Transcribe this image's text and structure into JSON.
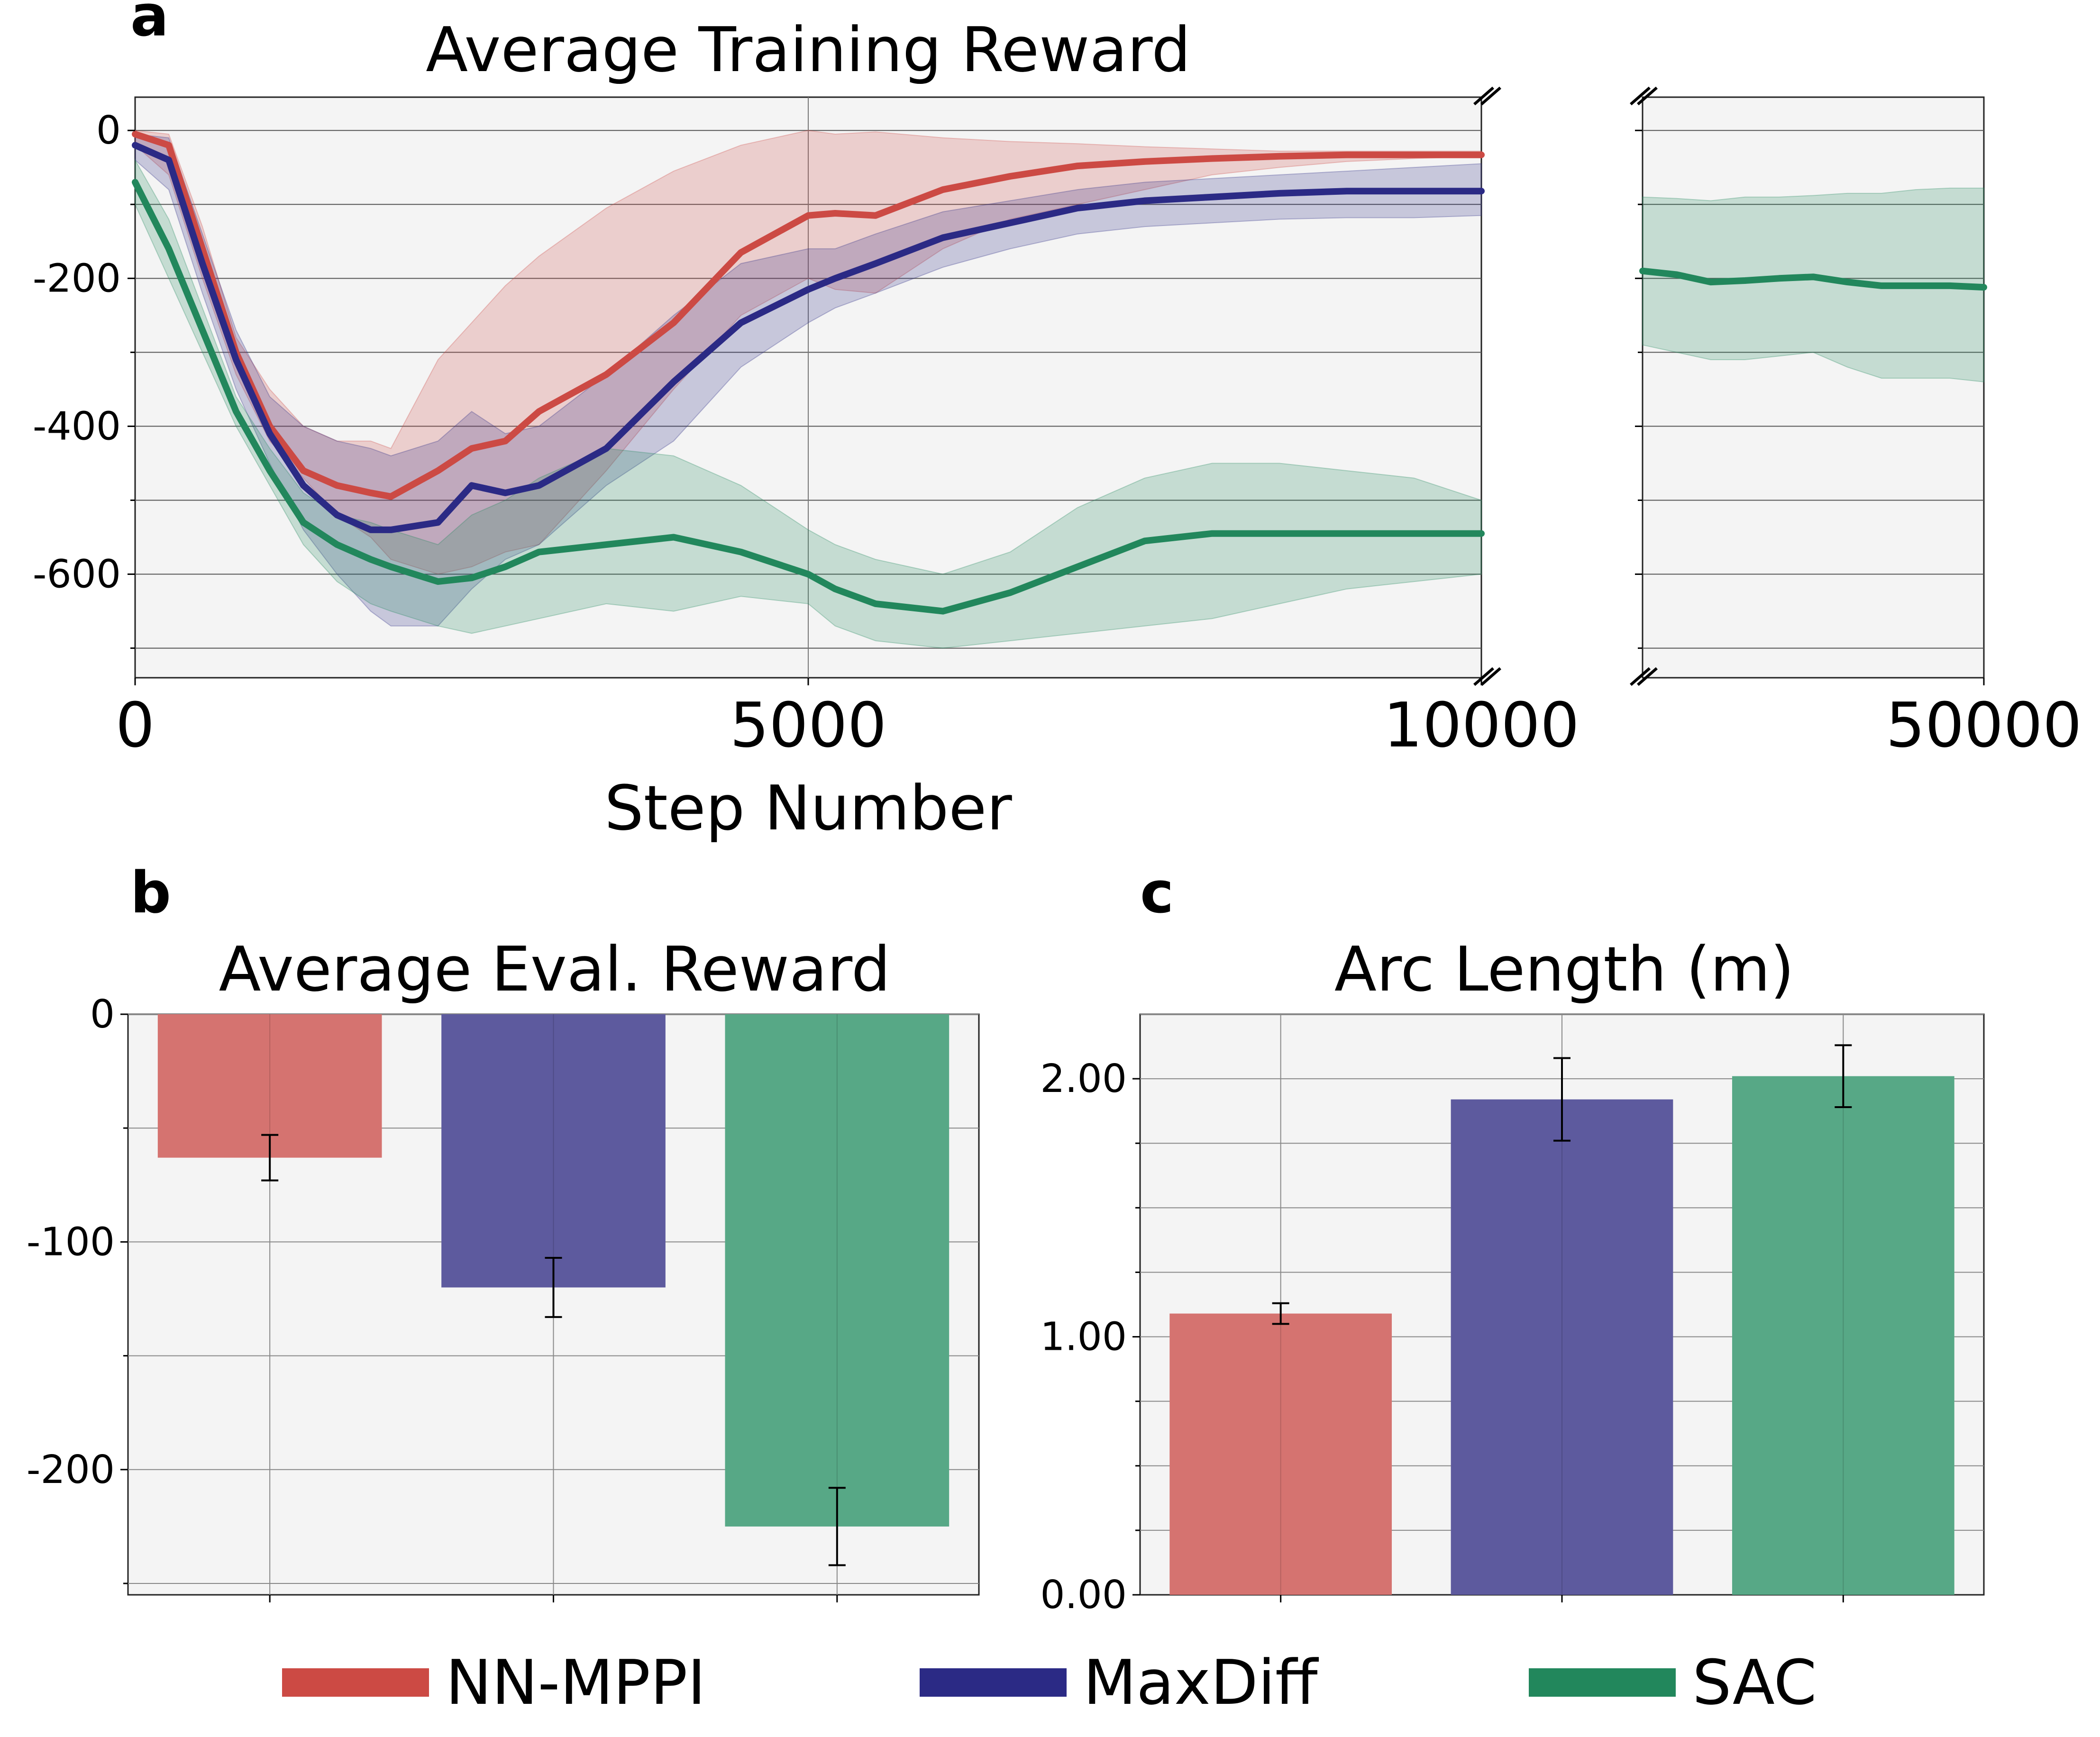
{
  "panel_labels": {
    "a": "a",
    "b": "b",
    "c": "c"
  },
  "colors": {
    "nn_mppi": "#cc4a44",
    "maxdiff": "#2b2a85",
    "sac": "#22875c",
    "nn_mppi_bar": "#d57370",
    "maxdiff_bar": "#5d5a9e",
    "sac_bar": "#57a886",
    "plot_bg": "#f4f4f4"
  },
  "legend": [
    {
      "label": "NN-MPPI",
      "color": "#cc4a44"
    },
    {
      "label": "MaxDiff",
      "color": "#2b2a85"
    },
    {
      "label": "SAC",
      "color": "#22875c"
    }
  ],
  "chart_data": [
    {
      "type": "line",
      "title": "Average Training Reward",
      "xlabel": "Step Number",
      "ylabel": "",
      "xlim": [
        0,
        10000
      ],
      "ylim": [
        -740,
        45
      ],
      "xticks": [
        "0",
        "5000",
        "10000"
      ],
      "yticks": [
        "0",
        "-200",
        "-400",
        "-600"
      ],
      "grid": true,
      "x": [
        0,
        250,
        500,
        750,
        1000,
        1250,
        1500,
        1750,
        1900,
        2250,
        2500,
        2750,
        3000,
        3500,
        4000,
        4500,
        5000,
        5200,
        5500,
        6000,
        6500,
        7000,
        7500,
        8000,
        8500,
        9000,
        9500,
        10000
      ],
      "series": [
        {
          "name": "NN-MPPI",
          "mean": [
            -5,
            -20,
            -160,
            -300,
            -400,
            -460,
            -480,
            -490,
            -495,
            -460,
            -430,
            -420,
            -380,
            -330,
            -260,
            -165,
            -115,
            -112,
            -115,
            -80,
            -62,
            -48,
            -42,
            -38,
            -35,
            -33,
            -33,
            -33
          ],
          "lower": [
            -20,
            -60,
            -200,
            -330,
            -420,
            -470,
            -520,
            -550,
            -580,
            -600,
            -590,
            -570,
            -560,
            -460,
            -350,
            -250,
            -200,
            -215,
            -220,
            -160,
            -120,
            -100,
            -80,
            -60,
            -50,
            -42,
            -38,
            -35
          ],
          "upper": [
            0,
            -5,
            -130,
            -280,
            -350,
            -400,
            -420,
            -420,
            -430,
            -310,
            -260,
            -210,
            -170,
            -105,
            -55,
            -20,
            0,
            -5,
            -2,
            -10,
            -15,
            -18,
            -22,
            -25,
            -28,
            -28,
            -28,
            -28
          ]
        },
        {
          "name": "MaxDiff",
          "mean": [
            -20,
            -40,
            -180,
            -310,
            -410,
            -480,
            -520,
            -540,
            -540,
            -530,
            -480,
            -490,
            -480,
            -430,
            -340,
            -260,
            -215,
            -200,
            -180,
            -145,
            -125,
            -105,
            -95,
            -90,
            -85,
            -82,
            -82,
            -82
          ],
          "lower": [
            -40,
            -80,
            -220,
            -350,
            -450,
            -540,
            -600,
            -650,
            -670,
            -670,
            -620,
            -580,
            -560,
            -480,
            -420,
            -320,
            -260,
            -240,
            -220,
            -185,
            -160,
            -140,
            -130,
            -125,
            -120,
            -118,
            -118,
            -115
          ],
          "upper": [
            -5,
            -10,
            -140,
            -270,
            -360,
            -400,
            -420,
            -430,
            -440,
            -420,
            -380,
            -410,
            -400,
            -330,
            -250,
            -180,
            -160,
            -160,
            -140,
            -110,
            -95,
            -80,
            -70,
            -65,
            -60,
            -55,
            -50,
            -45
          ]
        },
        {
          "name": "SAC",
          "mean": [
            -70,
            -160,
            -270,
            -380,
            -460,
            -530,
            -560,
            -580,
            -590,
            -610,
            -605,
            -590,
            -570,
            -560,
            -550,
            -570,
            -600,
            -620,
            -640,
            -650,
            -625,
            -590,
            -555,
            -545,
            -545,
            -545,
            -545,
            -545
          ],
          "lower": [
            -100,
            -200,
            -300,
            -400,
            -480,
            -560,
            -610,
            -640,
            -650,
            -670,
            -680,
            -670,
            -660,
            -640,
            -650,
            -630,
            -640,
            -670,
            -690,
            -700,
            -690,
            -680,
            -670,
            -660,
            -640,
            -620,
            -610,
            -600
          ],
          "upper": [
            -40,
            -120,
            -240,
            -360,
            -430,
            -490,
            -520,
            -530,
            -540,
            -560,
            -520,
            -500,
            -470,
            -430,
            -440,
            -480,
            -540,
            -560,
            -580,
            -600,
            -570,
            -510,
            -470,
            -450,
            -450,
            -460,
            -470,
            -500
          ]
        }
      ]
    },
    {
      "type": "line",
      "title": "",
      "xlabel": "",
      "ylabel": "",
      "xlim": [
        0,
        50000
      ],
      "ylim": [
        -740,
        45
      ],
      "xticks": [
        "50000"
      ],
      "grid": true,
      "x": [
        0,
        5000,
        10000,
        15000,
        20000,
        25000,
        30000,
        35000,
        40000,
        45000,
        50000
      ],
      "series": [
        {
          "name": "SAC",
          "mean": [
            -190,
            -195,
            -205,
            -203,
            -200,
            -198,
            -205,
            -210,
            -210,
            -210,
            -212
          ],
          "lower": [
            -290,
            -300,
            -310,
            -310,
            -305,
            -300,
            -320,
            -335,
            -335,
            -335,
            -340
          ],
          "upper": [
            -90,
            -92,
            -95,
            -90,
            -90,
            -88,
            -85,
            -85,
            -80,
            -78,
            -78
          ]
        }
      ]
    },
    {
      "type": "bar",
      "title": "Average Eval. Reward",
      "xlabel": "",
      "ylabel": "",
      "ylim": [
        -255,
        0
      ],
      "yticks": [
        "0",
        "-100",
        "-200"
      ],
      "grid": true,
      "categories": [
        "NN-MPPI",
        "MaxDiff",
        "SAC"
      ],
      "values": [
        -63,
        -120,
        -225
      ],
      "errors": [
        10,
        13,
        17
      ]
    },
    {
      "type": "bar",
      "title": "Arc Length (m)",
      "xlabel": "",
      "ylabel": "",
      "ylim": [
        0,
        2.25
      ],
      "yticks": [
        "0.00",
        "1.00",
        "2.00"
      ],
      "grid": true,
      "categories": [
        "NN-MPPI",
        "MaxDiff",
        "SAC"
      ],
      "values": [
        1.09,
        1.92,
        2.01
      ],
      "errors": [
        0.04,
        0.16,
        0.12
      ]
    }
  ]
}
